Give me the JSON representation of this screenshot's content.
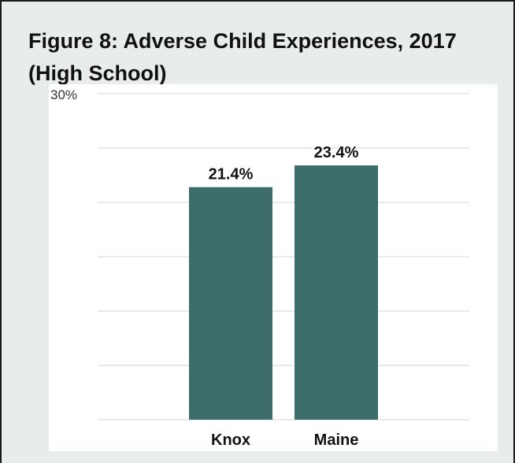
{
  "figure": {
    "title": "Figure 8: Adverse Child Experiences, 2017 (High School)"
  },
  "chart_data": {
    "type": "bar",
    "title": "Figure 8: Adverse Child Experiences, 2017 (High School)",
    "categories": [
      "Knox",
      "Maine"
    ],
    "values": [
      21.4,
      23.4
    ],
    "value_labels": [
      "21.4%",
      "23.4%"
    ],
    "ylim": [
      0,
      30
    ],
    "y_tick_labels": [
      "30%"
    ],
    "xlabel": "",
    "ylabel": "",
    "grid": true,
    "legend": "none",
    "bar_color": "#3d6d6b",
    "grid_color": "#d6d6d6",
    "background_color": "#e9ecec"
  }
}
